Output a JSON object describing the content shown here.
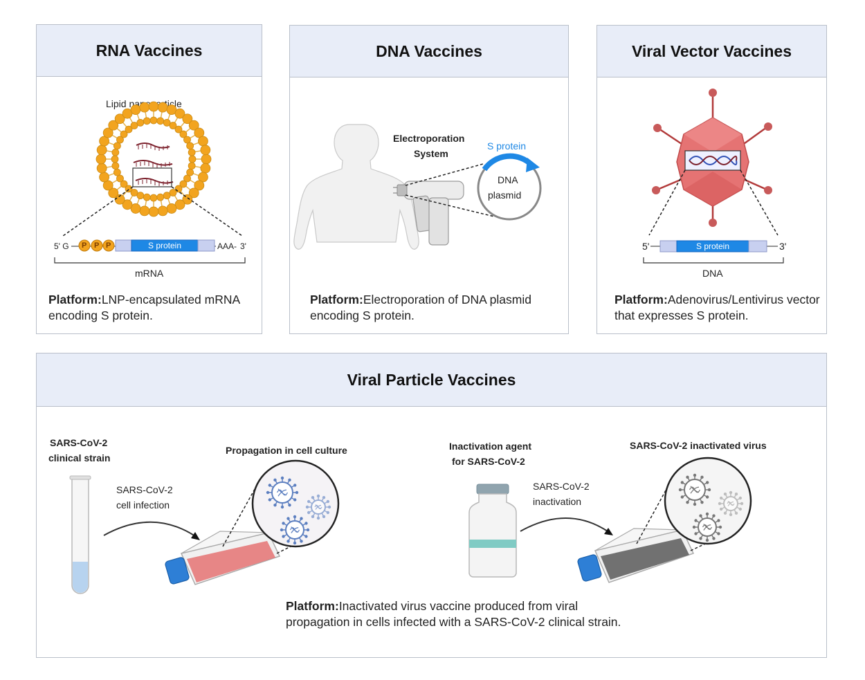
{
  "rna": {
    "title": "RNA Vaccines",
    "lnp_label": "Lipid nanoparticle",
    "five_prime": "5' G",
    "cap_letter": "P",
    "gene_label": "S protein",
    "poly_a": "AAA-",
    "three_prime": "3'",
    "strand_label": "mRNA",
    "platform_heading": "Platform:",
    "platform_text": "LNP-encapsulated mRNA encoding S protein."
  },
  "dna": {
    "title": "DNA Vaccines",
    "device_label_line1": "Electroporation",
    "device_label_line2": "System",
    "gene_label": "S protein",
    "plasmid_line1": "DNA",
    "plasmid_line2": "plasmid",
    "platform_heading": "Platform:",
    "platform_text": "Electroporation of DNA plasmid encoding S protein."
  },
  "vector": {
    "title": "Viral Vector Vaccines",
    "five_prime": "5'",
    "gene_label": "S protein",
    "three_prime": "3'",
    "strand_label": "DNA",
    "platform_heading": "Platform:",
    "platform_text": "Adenovirus/Lentivirus vector that expresses S protein."
  },
  "particle": {
    "title": "Viral Particle Vaccines",
    "strain_line1": "SARS-CoV-2",
    "strain_line2": "clinical strain",
    "infection_line1": "SARS-CoV-2",
    "infection_line2": "cell infection",
    "propagation_label": "Propagation in cell culture",
    "agent_line1": "Inactivation agent",
    "agent_line2": "for SARS-CoV-2",
    "inactivation_line1": "SARS-CoV-2",
    "inactivation_line2": "inactivation",
    "inactivated_label": "SARS-CoV-2 inactivated virus",
    "platform_heading": "Platform:",
    "platform_line1": "Inactivated virus vaccine produced from viral",
    "platform_line2": "propagation in cells infected with a SARS-CoV-2 clinical strain."
  },
  "colors": {
    "header_bg": "#e8edf8",
    "border": "#b9bfc9",
    "gene_blue": "#1e88e5",
    "lipid_orange": "#f2a41f",
    "capsid_red": "#e57373",
    "culture_pink": "#e57373",
    "virus_blue": "#5c7fc0",
    "cap_blue": "#2e7fd6"
  }
}
